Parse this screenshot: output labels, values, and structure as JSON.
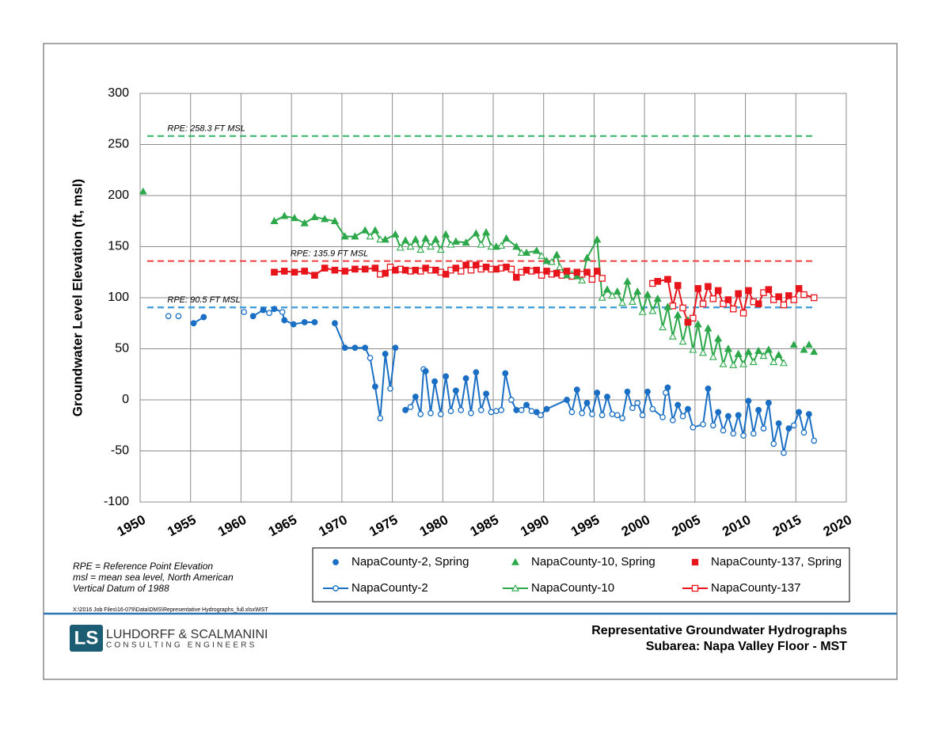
{
  "chart_data": {
    "type": "line",
    "y_label": "Groundwater Level Elevation (ft, msl)",
    "xlim": [
      1950,
      2020
    ],
    "xticks": [
      1950,
      1955,
      1960,
      1965,
      1970,
      1975,
      1980,
      1985,
      1990,
      1995,
      2000,
      2005,
      2010,
      2015,
      2020
    ],
    "ylim": [
      -100,
      300
    ],
    "yticks": [
      -100,
      -50,
      0,
      50,
      100,
      150,
      200,
      250,
      300
    ],
    "grid": true,
    "legend": "below",
    "reference_lines": [
      {
        "value": 258.3,
        "label": "RPE: 258.3 FT MSL",
        "color": "#3cb870"
      },
      {
        "value": 135.9,
        "label": "RPE: 135.9 FT MSL",
        "color": "#f04a4a"
      },
      {
        "value": 90.5,
        "label": "RPE: 90.5 FT MSL",
        "color": "#3a9ad9"
      }
    ],
    "series": [
      {
        "name": "NapaCounty-2, Spring",
        "color": "#1a6fc4",
        "mode": "markers",
        "marker": "circle",
        "filled": true,
        "x": [
          1955.3,
          1956.3,
          1961.2,
          1962.2,
          1963.3,
          1964.3,
          1965.2,
          1966.3,
          1967.3,
          1969.3,
          1970.3,
          1971.3,
          1972.3,
          1973.3,
          1974.3,
          1975.3,
          1976.3,
          1977.3,
          1978.3,
          1979.2,
          1980.3,
          1981.3,
          1982.3,
          1983.3,
          1984.3,
          1986.2,
          1987.3,
          1988.3,
          1989.3,
          1990.3,
          1992.3,
          1993.3,
          1994.3,
          1995.3,
          1996.3,
          1998.3,
          2000.3,
          2002.3,
          2003.3,
          2004.3,
          2006.3,
          2007.3,
          2008.3,
          2009.3,
          2010.3,
          2011.3,
          2012.3,
          2013.3,
          2014.3,
          2015.3,
          2016.3
        ],
        "values": [
          75,
          81,
          82,
          88,
          89,
          78,
          74,
          76,
          76,
          75,
          51,
          51,
          51,
          13,
          45,
          51,
          -10,
          3,
          28,
          18,
          23,
          9,
          21,
          27,
          6,
          26,
          -10,
          -5,
          -12,
          -9,
          0,
          10,
          -3,
          7,
          3,
          8,
          8,
          12,
          -5,
          -9,
          11,
          -12,
          -16,
          -15,
          -1,
          -10,
          -3,
          -23,
          -28,
          -12,
          -14
        ]
      },
      {
        "name": "NapaCounty-10, Spring",
        "color": "#2ca84a",
        "mode": "markers",
        "marker": "triangle",
        "filled": true,
        "x": [
          1950.3,
          1963.3,
          1964.3,
          1965.3,
          1966.3,
          1967.3,
          1968.3,
          1969.3,
          1970.3,
          1971.3,
          1972.3,
          1973.3,
          1974.3,
          1975.3,
          1976.3,
          1977.3,
          1978.3,
          1979.3,
          1980.3,
          1981.3,
          1982.3,
          1983.3,
          1984.3,
          1985.3,
          1986.3,
          1987.3,
          1988.3,
          1989.3,
          1990.3,
          1991.3,
          1992.3,
          1993.3,
          1994.3,
          1995.3,
          1996.3,
          1997.3,
          1998.3,
          1999.3,
          2000.3,
          2001.3,
          2002.3,
          2003.3,
          2004.3,
          2005.3,
          2006.3,
          2007.3,
          2008.3,
          2009.3,
          2010.3,
          2011.3,
          2012.3,
          2013.3,
          2014.8,
          2015.8,
          2016.3,
          2016.8
        ],
        "values": [
          204,
          175,
          180,
          178,
          173,
          179,
          177,
          175,
          160,
          160,
          166,
          166,
          157,
          162,
          156,
          157,
          158,
          157,
          162,
          155,
          154,
          163,
          164,
          150,
          158,
          150,
          144,
          146,
          136,
          142,
          122,
          121,
          139,
          157,
          108,
          106,
          116,
          106,
          103,
          99,
          91,
          83,
          78,
          74,
          70,
          60,
          50,
          45,
          47,
          48,
          49,
          44,
          54,
          49,
          54,
          47
        ]
      },
      {
        "name": "NapaCounty-137, Spring",
        "color": "#e8141c",
        "mode": "markers",
        "marker": "square",
        "filled": true,
        "x": [
          1963.3,
          1964.3,
          1965.3,
          1966.3,
          1967.3,
          1968.3,
          1969.3,
          1970.3,
          1971.3,
          1972.3,
          1973.3,
          1974.3,
          1975.3,
          1976.3,
          1977.3,
          1978.3,
          1979.3,
          1980.3,
          1981.3,
          1982.3,
          1983.3,
          1984.3,
          1985.3,
          1986.3,
          1987.3,
          1988.3,
          1989.3,
          1990.3,
          1991.3,
          1992.3,
          1993.3,
          1994.3,
          1995.3,
          2001.3,
          2002.3,
          2003.3,
          2004.3,
          2005.3,
          2006.3,
          2007.3,
          2008.3,
          2009.3,
          2010.3,
          2011.3,
          2012.3,
          2013.3,
          2014.3,
          2015.3
        ],
        "values": [
          125,
          126,
          125,
          126,
          122,
          129,
          127,
          126,
          128,
          128,
          129,
          124,
          127,
          127,
          127,
          129,
          127,
          123,
          129,
          132,
          132,
          130,
          128,
          130,
          120,
          127,
          127,
          126,
          124,
          126,
          125,
          125,
          126,
          116,
          118,
          112,
          76,
          109,
          111,
          107,
          98,
          104,
          107,
          94,
          108,
          101,
          102,
          109
        ]
      },
      {
        "name": "NapaCounty-2",
        "color": "#1a6fc4",
        "mode": "lines+markers",
        "marker": "circle",
        "filled": false,
        "x": [
          1952.8,
          null,
          1953.8,
          null,
          1955.3,
          1956.3,
          null,
          1960.3,
          null,
          1961.2,
          1962.2,
          1962.8,
          1963.3,
          1964.1,
          1964.3,
          1965.2,
          1966.3,
          1967.3,
          null,
          1969.3,
          1970.3,
          1971.3,
          1972.3,
          1972.8,
          1973.3,
          1973.8,
          1974.3,
          1974.8,
          1975.3,
          null,
          1976.3,
          1976.8,
          1977.3,
          1977.8,
          1978.1,
          1978.3,
          1978.8,
          1979.2,
          1979.8,
          1980.3,
          1980.8,
          1981.3,
          1981.8,
          1982.3,
          1982.8,
          1983.3,
          1983.8,
          1984.3,
          1984.8,
          1985.3,
          1985.8,
          1986.2,
          1986.8,
          1987.3,
          1987.8,
          1988.3,
          1988.8,
          1989.3,
          1989.7,
          1990.3,
          1992.3,
          1992.8,
          1993.3,
          1993.8,
          1994.3,
          1994.8,
          1995.3,
          1995.8,
          1996.3,
          1996.8,
          1997.3,
          1997.8,
          1998.3,
          1998.8,
          1999.3,
          1999.8,
          2000.3,
          2000.8,
          2001.8,
          2002.1,
          2002.3,
          2002.8,
          2003.3,
          2003.8,
          2004.3,
          2004.8,
          2005.8,
          2006.3,
          2006.8,
          2007.3,
          2007.8,
          2008.3,
          2008.8,
          2009.3,
          2009.8,
          2010.3,
          2010.8,
          2011.3,
          2011.8,
          2012.3,
          2012.8,
          2013.3,
          2013.8,
          2014.3,
          2014.8,
          2015.3,
          2015.8,
          2016.3,
          2016.8
        ],
        "values": [
          82,
          null,
          82,
          null,
          75,
          81,
          null,
          86,
          null,
          82,
          88,
          85,
          89,
          86,
          78,
          74,
          76,
          76,
          null,
          75,
          51,
          51,
          51,
          41,
          13,
          -18,
          45,
          11,
          51,
          null,
          -10,
          -7,
          3,
          -14,
          30,
          28,
          -13,
          18,
          -14,
          23,
          -11,
          9,
          -10,
          21,
          -13,
          27,
          -10,
          6,
          -12,
          -11,
          -10,
          26,
          0,
          -10,
          -10,
          -5,
          -11,
          -12,
          -15,
          -9,
          0,
          -12,
          10,
          -13,
          -3,
          -14,
          7,
          -15,
          3,
          -14,
          -15,
          -18,
          8,
          -8,
          -3,
          -15,
          8,
          -9,
          -17,
          7,
          12,
          -20,
          -5,
          -16,
          -9,
          -27,
          -24,
          11,
          -25,
          -12,
          -30,
          -16,
          -33,
          -15,
          -35,
          -1,
          -33,
          -10,
          -28,
          -3,
          -43,
          -23,
          -52,
          -28,
          -25,
          -12,
          -32,
          -14,
          -40
        ]
      },
      {
        "name": "NapaCounty-10",
        "color": "#2ca84a",
        "mode": "lines+markers",
        "marker": "triangle",
        "filled": false,
        "x": [
          1963.3,
          1964.3,
          1965.3,
          1966.3,
          1967.3,
          1968.3,
          1969.3,
          1970.3,
          1971.3,
          1972.3,
          1972.8,
          1973.3,
          1973.8,
          1974.3,
          1975.3,
          1975.8,
          1976.3,
          1976.8,
          1977.3,
          1977.8,
          1978.3,
          1978.8,
          1979.3,
          1979.8,
          1980.3,
          1980.8,
          1981.3,
          1982.3,
          1983.3,
          1983.8,
          1984.3,
          1984.8,
          1985.3,
          1985.8,
          1986.3,
          1987.3,
          1987.8,
          1988.3,
          1989.3,
          1989.8,
          1990.3,
          1990.8,
          1991.3,
          1991.6,
          1992.3,
          1992.8,
          1993.3,
          1993.8,
          1994.3,
          1995.3,
          1995.8,
          1996.3,
          1996.8,
          1997.3,
          1997.8,
          1998.3,
          1998.8,
          1999.3,
          1999.8,
          2000.3,
          2000.8,
          2001.3,
          2001.8,
          2002.3,
          2002.8,
          2003.3,
          2003.8,
          2004.3,
          2004.8,
          2005.3,
          2005.8,
          2006.3,
          2006.8,
          2007.3,
          2007.8,
          2008.3,
          2008.8,
          2009.3,
          2009.8,
          2010.3,
          2010.8,
          2011.3,
          2011.8,
          2012.3,
          2012.8,
          2013.3,
          2013.8
        ],
        "values": [
          175,
          180,
          178,
          173,
          179,
          177,
          175,
          160,
          160,
          166,
          160,
          166,
          157,
          157,
          162,
          149,
          156,
          150,
          157,
          147,
          158,
          150,
          157,
          147,
          162,
          152,
          155,
          154,
          163,
          152,
          164,
          150,
          150,
          151,
          158,
          150,
          144,
          144,
          146,
          141,
          136,
          135,
          142,
          130,
          122,
          123,
          121,
          117,
          139,
          157,
          100,
          108,
          102,
          106,
          95,
          116,
          96,
          106,
          86,
          103,
          87,
          99,
          71,
          91,
          62,
          83,
          57,
          78,
          49,
          74,
          46,
          70,
          42,
          60,
          35,
          50,
          34,
          45,
          35,
          47,
          37,
          48,
          43,
          49,
          37,
          44,
          36
        ]
      },
      {
        "name": "NapaCounty-137",
        "color": "#e8141c",
        "mode": "lines+markers",
        "marker": "square",
        "filled": false,
        "x": [
          1963.3,
          1964.3,
          1965.3,
          1966.3,
          1967.3,
          1968.3,
          1969.3,
          1970.3,
          1971.3,
          1972.3,
          1973.3,
          1973.8,
          1974.3,
          1974.8,
          1975.3,
          1975.8,
          1976.3,
          1976.8,
          1977.3,
          1977.8,
          1978.3,
          1978.8,
          1979.3,
          1979.8,
          1980.3,
          1980.8,
          1981.3,
          1981.8,
          1982.3,
          1982.8,
          1983.3,
          1983.8,
          1984.3,
          1984.8,
          1985.3,
          1985.8,
          1986.3,
          1986.8,
          1987.3,
          1987.8,
          1988.3,
          1988.8,
          1989.3,
          1989.8,
          1990.3,
          1990.8,
          1991.3,
          1991.8,
          1992.3,
          1992.8,
          1993.3,
          1993.8,
          1994.3,
          1994.8,
          1995.3,
          1995.8,
          null,
          2000.8,
          2001.3,
          2002.3,
          2002.8,
          2003.3,
          2003.8,
          2004.3,
          2004.8,
          2005.3,
          2005.8,
          2006.3,
          2006.8,
          2007.3,
          2007.8,
          2008.3,
          2008.8,
          2009.3,
          2009.8,
          2010.3,
          2010.8,
          2011.3,
          2011.8,
          2012.3,
          2012.8,
          2013.3,
          2013.8,
          2014.3,
          2014.8,
          2015.3,
          2015.8,
          2016.8
        ],
        "values": [
          125,
          126,
          125,
          126,
          122,
          129,
          127,
          126,
          128,
          128,
          129,
          123,
          124,
          130,
          127,
          128,
          127,
          126,
          127,
          126,
          129,
          127,
          127,
          125,
          123,
          127,
          129,
          126,
          132,
          127,
          132,
          128,
          130,
          128,
          128,
          129,
          130,
          128,
          120,
          125,
          127,
          126,
          127,
          122,
          126,
          123,
          124,
          122,
          126,
          121,
          125,
          123,
          125,
          118,
          126,
          119,
          null,
          114,
          116,
          118,
          92,
          112,
          90,
          76,
          80,
          109,
          94,
          111,
          99,
          107,
          94,
          98,
          89,
          104,
          85,
          107,
          96,
          94,
          105,
          108,
          98,
          101,
          93,
          102,
          98,
          109,
          103,
          100
        ]
      }
    ]
  },
  "notes": [
    "RPE = Reference Point Elevation",
    "msl = mean sea level, North American",
    "Vertical Datum of 1988"
  ],
  "file_path": "X:\\2016 Job Files\\16-079\\Data\\DMS\\Representative Hydrographs_full.xlsx\\MST",
  "logo": {
    "mark": "LS",
    "name": "LUHDORFF & SCALMANINI",
    "tagline": "CONSULTING ENGINEERS"
  },
  "report_title": [
    "Representative Groundwater Hydrographs",
    "Subarea: Napa Valley Floor - MST"
  ]
}
